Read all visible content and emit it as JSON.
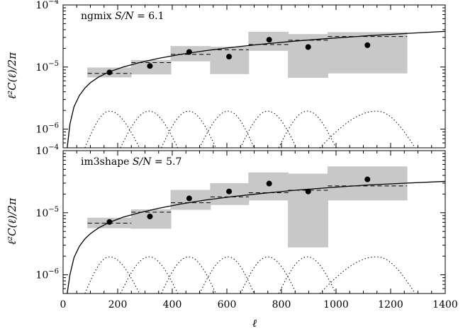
{
  "chart_data": [
    {
      "type": "scatter",
      "annotation_name": "ngmix",
      "annotation_sn_label": "S/N",
      "annotation_sn_value": "= 6.1",
      "xlabel": "ℓ",
      "ylabel": "ℓ²C(ℓ)/2π",
      "xlim": [
        0,
        1400
      ],
      "ylim": [
        5e-07,
        0.0001
      ],
      "yscale": "log",
      "ytick_labels": [
        {
          "value": 1e-06,
          "base": "10",
          "exp": "−6"
        },
        {
          "value": 1e-05,
          "base": "10",
          "exp": "−5"
        },
        {
          "value": 0.0001,
          "base": "10",
          "exp": "−4"
        }
      ],
      "points": [
        {
          "x": 170,
          "y": 8.2e-06
        },
        {
          "x": 318,
          "y": 1.04e-05
        },
        {
          "x": 462,
          "y": 1.75e-05
        },
        {
          "x": 608,
          "y": 1.47e-05
        },
        {
          "x": 755,
          "y": 2.75e-05
        },
        {
          "x": 898,
          "y": 2.1e-05
        },
        {
          "x": 1115,
          "y": 2.25e-05
        }
      ],
      "bins": [
        {
          "x0": 90,
          "x1": 250,
          "ylo": 6.9e-06,
          "yhi": 9.7e-06,
          "model": 7.9e-06
        },
        {
          "x0": 250,
          "x1": 395,
          "ylo": 7.7e-06,
          "yhi": 1.28e-05,
          "model": 1.18e-05
        },
        {
          "x0": 395,
          "x1": 540,
          "ylo": 1.25e-05,
          "yhi": 2.15e-05,
          "model": 1.6e-05
        },
        {
          "x0": 540,
          "x1": 680,
          "ylo": 7.8e-06,
          "yhi": 2.1e-05,
          "model": 1.9e-05
        },
        {
          "x0": 680,
          "x1": 825,
          "ylo": 1.85e-05,
          "yhi": 3.65e-05,
          "model": 2.3e-05
        },
        {
          "x0": 825,
          "x1": 970,
          "ylo": 6.8e-06,
          "yhi": 3.35e-05,
          "model": 2.7e-05
        },
        {
          "x0": 970,
          "x1": 1260,
          "ylo": 8e-06,
          "yhi": 3.6e-05,
          "model": 3.1e-05
        }
      ],
      "theory_curve": {
        "x": [
          15,
          25,
          40,
          60,
          80,
          100,
          130,
          170,
          220,
          280,
          350,
          430,
          520,
          620,
          730,
          850,
          980,
          1120,
          1260,
          1400
        ],
        "y": [
          5e-07,
          1.2e-06,
          2.3e-06,
          3.5e-06,
          4.6e-06,
          5.6e-06,
          6.9e-06,
          8.4e-06,
          1e-05,
          1.18e-05,
          1.38e-05,
          1.6e-05,
          1.83e-05,
          2.08e-05,
          2.34e-05,
          2.62e-05,
          2.9e-05,
          3.2e-05,
          3.48e-05,
          3.75e-05
        ]
      },
      "window_functions": [
        {
          "l0": 80,
          "l1": 280,
          "lpeak": 170,
          "peak": 1.95e-06
        },
        {
          "l0": 210,
          "l1": 420,
          "lpeak": 315,
          "peak": 1.95e-06
        },
        {
          "l0": 360,
          "l1": 560,
          "lpeak": 460,
          "peak": 1.95e-06
        },
        {
          "l0": 500,
          "l1": 700,
          "lpeak": 605,
          "peak": 1.95e-06
        },
        {
          "l0": 650,
          "l1": 855,
          "lpeak": 750,
          "peak": 1.95e-06
        },
        {
          "l0": 790,
          "l1": 1000,
          "lpeak": 895,
          "peak": 1.95e-06
        },
        {
          "l0": 940,
          "l1": 1290,
          "lpeak": 1150,
          "peak": 1.95e-06
        }
      ]
    },
    {
      "type": "scatter",
      "annotation_name": "im3shape",
      "annotation_sn_label": "S/N",
      "annotation_sn_value": "= 5.7",
      "xlabel": "ℓ",
      "ylabel": "ℓ²C(ℓ)/2π",
      "xlim": [
        0,
        1400
      ],
      "ylim": [
        5e-07,
        0.0001
      ],
      "yscale": "log",
      "xtick_labels": [
        "0",
        "200",
        "400",
        "600",
        "800",
        "1000",
        "1200",
        "1400"
      ],
      "ytick_labels": [
        {
          "value": 1e-06,
          "base": "10",
          "exp": "−6"
        },
        {
          "value": 1e-05,
          "base": "10",
          "exp": "−5"
        },
        {
          "value": 0.0001,
          "base": "10",
          "exp": "−4"
        }
      ],
      "points": [
        {
          "x": 170,
          "y": 7.1e-06
        },
        {
          "x": 318,
          "y": 8.7e-06
        },
        {
          "x": 462,
          "y": 1.7e-05
        },
        {
          "x": 608,
          "y": 2.2e-05
        },
        {
          "x": 755,
          "y": 2.95e-05
        },
        {
          "x": 898,
          "y": 2.2e-05
        },
        {
          "x": 1115,
          "y": 3.45e-05
        }
      ],
      "bins": [
        {
          "x0": 90,
          "x1": 250,
          "ylo": 5.7e-06,
          "yhi": 8.2e-06,
          "model": 6.8e-06
        },
        {
          "x0": 250,
          "x1": 395,
          "ylo": 5.6e-06,
          "yhi": 1.12e-05,
          "model": 1.02e-05
        },
        {
          "x0": 395,
          "x1": 540,
          "ylo": 1.13e-05,
          "yhi": 2.3e-05,
          "model": 1.45e-05
        },
        {
          "x0": 540,
          "x1": 680,
          "ylo": 1.35e-05,
          "yhi": 2.95e-05,
          "model": 1.8e-05
        },
        {
          "x0": 680,
          "x1": 825,
          "ylo": 1.6e-05,
          "yhi": 4.4e-05,
          "model": 2.1e-05
        },
        {
          "x0": 825,
          "x1": 970,
          "ylo": 2.8e-06,
          "yhi": 4.2e-05,
          "model": 2.3e-05
        },
        {
          "x0": 970,
          "x1": 1260,
          "ylo": 1.6e-05,
          "yhi": 5.5e-05,
          "model": 2.7e-05
        }
      ],
      "theory_curve": {
        "x": [
          15,
          25,
          40,
          60,
          80,
          100,
          130,
          170,
          220,
          280,
          350,
          430,
          520,
          620,
          730,
          850,
          980,
          1120,
          1260,
          1400
        ],
        "y": [
          5e-07,
          1e-06,
          1.9e-06,
          2.9e-06,
          3.8e-06,
          4.6e-06,
          5.7e-06,
          7e-06,
          8.5e-06,
          1e-05,
          1.18e-05,
          1.38e-05,
          1.6e-05,
          1.82e-05,
          2.05e-05,
          2.3e-05,
          2.55e-05,
          2.8e-05,
          3e-05,
          3.2e-05
        ]
      },
      "window_functions": [
        {
          "l0": 80,
          "l1": 280,
          "lpeak": 170,
          "peak": 1.95e-06
        },
        {
          "l0": 210,
          "l1": 420,
          "lpeak": 315,
          "peak": 1.95e-06
        },
        {
          "l0": 360,
          "l1": 560,
          "lpeak": 460,
          "peak": 1.95e-06
        },
        {
          "l0": 500,
          "l1": 700,
          "lpeak": 605,
          "peak": 1.95e-06
        },
        {
          "l0": 650,
          "l1": 855,
          "lpeak": 750,
          "peak": 1.95e-06
        },
        {
          "l0": 790,
          "l1": 1000,
          "lpeak": 895,
          "peak": 1.95e-06
        },
        {
          "l0": 940,
          "l1": 1290,
          "lpeak": 1150,
          "peak": 1.95e-06
        }
      ]
    }
  ]
}
